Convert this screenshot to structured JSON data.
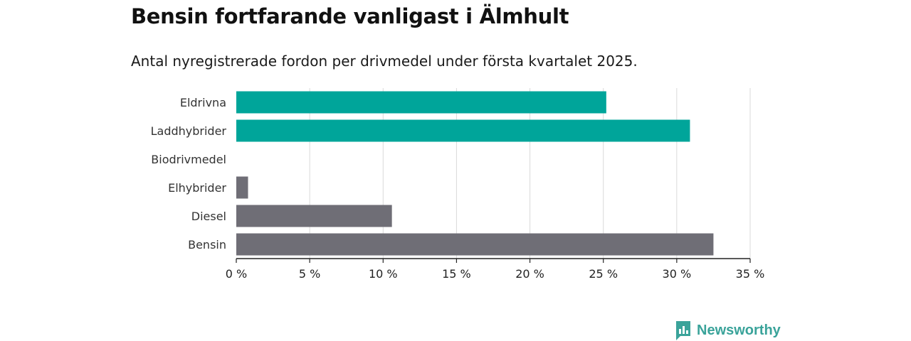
{
  "title": "Bensin fortfarande vanligast i Älmhult",
  "subtitle": "Antal nyregistrerade fordon per drivmedel under första kvartalet 2025.",
  "brand": {
    "name": "Newsworthy",
    "icon": "bar-chart-bubble-icon"
  },
  "colors": {
    "teal": "#00a59a",
    "gray": "#6f6e76",
    "grid": "#d9d9d9",
    "axis": "#222222",
    "brand": "#3aa39a"
  },
  "chart_data": {
    "type": "bar",
    "orientation": "horizontal",
    "categories": [
      "Eldrivna",
      "Laddhybrider",
      "Biodrivmedel",
      "Elhybrider",
      "Diesel",
      "Bensin"
    ],
    "values": [
      25.2,
      30.9,
      0,
      0.8,
      10.6,
      32.5
    ],
    "bar_colors": [
      "teal",
      "teal",
      "gray",
      "gray",
      "gray",
      "gray"
    ],
    "xlim": [
      0,
      35
    ],
    "xticks": [
      0,
      5,
      10,
      15,
      20,
      25,
      30,
      35
    ],
    "xtick_labels": [
      "0 %",
      "5 %",
      "10 %",
      "15 %",
      "20 %",
      "25 %",
      "30 %",
      "35 %"
    ],
    "xlabel": "",
    "ylabel": "",
    "grid": "vertical"
  }
}
